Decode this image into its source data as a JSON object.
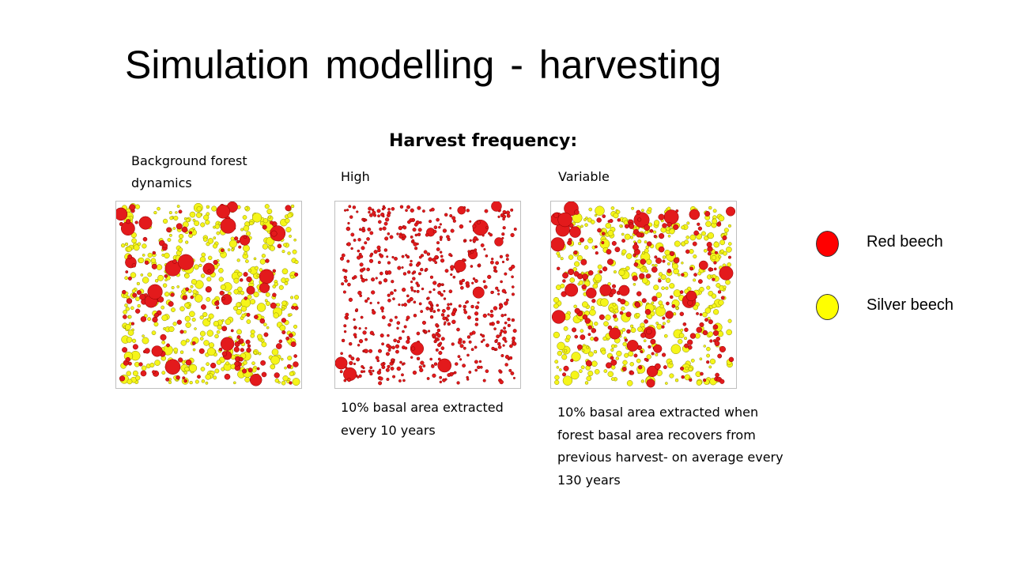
{
  "title": "Simulation modelling - harvesting",
  "subtitle": "Harvest frequency:",
  "panels": [
    {
      "label": "Background forest dynamics",
      "caption": ""
    },
    {
      "label": "High",
      "caption": "10% basal area extracted every 10 years"
    },
    {
      "label": "Variable",
      "caption": "10% basal area extracted when forest basal area recovers from previous harvest- on average every 130 years"
    }
  ],
  "legend": [
    {
      "label": "Red beech",
      "color": "#ff0000"
    },
    {
      "label": "Silver beech",
      "color": "#ffff00"
    }
  ],
  "colors": {
    "red_beech": "#e31a1c",
    "silver_beech": "#f5f51a",
    "outline": "#8a8a00"
  }
}
